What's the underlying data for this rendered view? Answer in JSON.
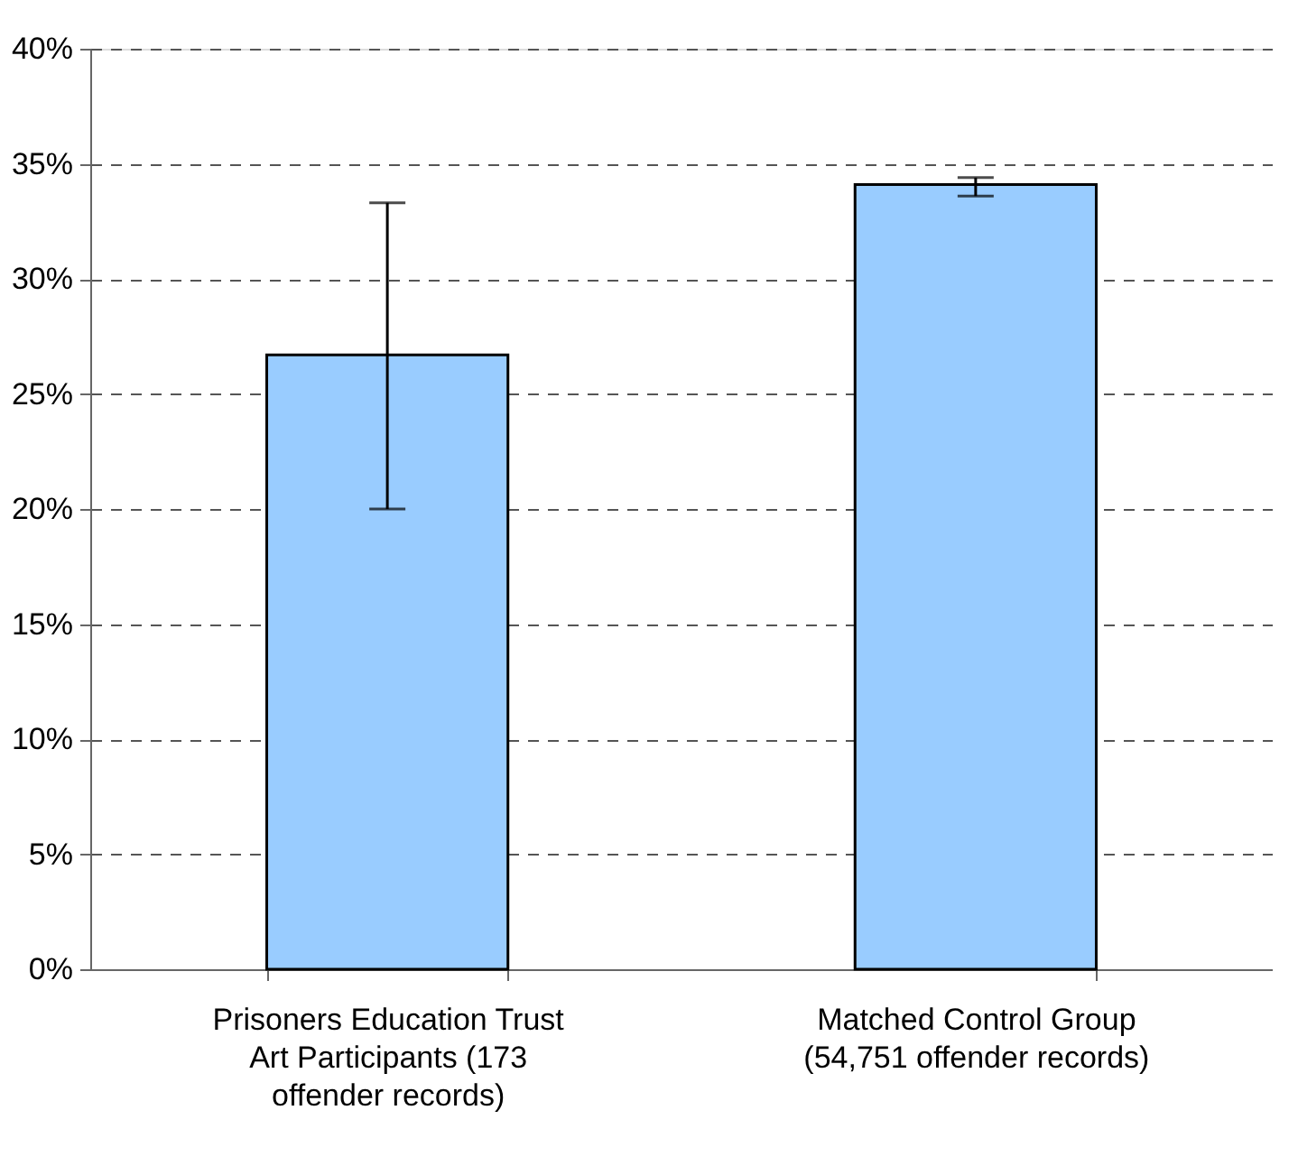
{
  "chart_data": {
    "type": "bar",
    "categories": [
      "Prisoners Education Trust Art Participants (173 offender records)",
      "Matched Control Group (54,751 offender records)"
    ],
    "values": [
      26.7,
      34.1
    ],
    "errors": [
      [
        20.0,
        33.3
      ],
      [
        33.6,
        34.4
      ]
    ],
    "color": "#99ccff",
    "ylim": [
      0,
      40
    ],
    "yticks": [
      {
        "value": 0,
        "label": "0%"
      },
      {
        "value": 5,
        "label": "5%"
      },
      {
        "value": 10,
        "label": "10%"
      },
      {
        "value": 15,
        "label": "15%"
      },
      {
        "value": 20,
        "label": "20%"
      },
      {
        "value": 25,
        "label": "25%"
      },
      {
        "value": 30,
        "label": "30%"
      },
      {
        "value": 35,
        "label": "35%"
      },
      {
        "value": 40,
        "label": "40%"
      }
    ],
    "grid": "y"
  }
}
